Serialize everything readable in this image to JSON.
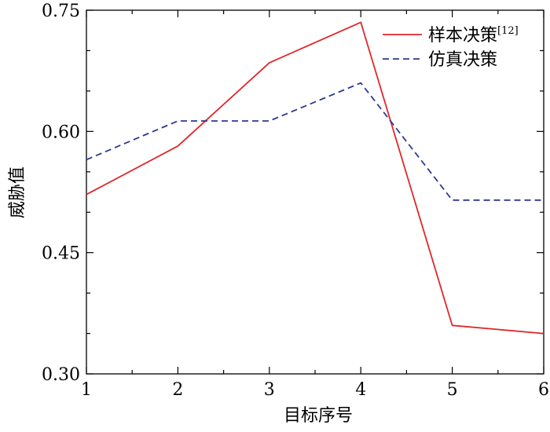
{
  "chart_data": {
    "type": "line",
    "x": [
      1,
      2,
      3,
      4,
      5,
      6
    ],
    "xlabel": "目标序号",
    "ylabel": "威胁值",
    "xlim": [
      1,
      6
    ],
    "ylim": [
      0.3,
      0.75
    ],
    "x_ticks": [
      "1",
      "2",
      "3",
      "4",
      "5",
      "6"
    ],
    "y_ticks": [
      "0.30",
      "0.45",
      "0.60",
      "0.75"
    ],
    "grid": false,
    "legend_position": "top-right",
    "series": [
      {
        "name": "样本决策",
        "name_sup": "[12]",
        "values": [
          0.522,
          0.582,
          0.685,
          0.735,
          0.36,
          0.35
        ],
        "color": "#e0272a",
        "style": "solid"
      },
      {
        "name": "仿真决策",
        "values": [
          0.565,
          0.613,
          0.613,
          0.66,
          0.515,
          0.515
        ],
        "color": "#2b3990",
        "style": "dashed"
      }
    ]
  }
}
